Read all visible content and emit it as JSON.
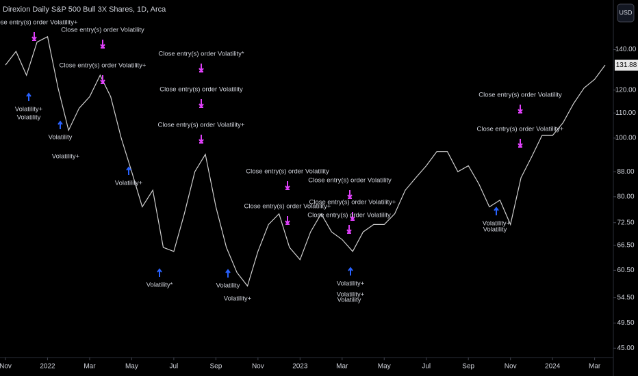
{
  "chart_data": {
    "type": "line",
    "title": "Direxion Daily S&P 500 Bull 3X Shares, 1D, Arca",
    "currency": "USD",
    "categories": [
      "Nov",
      null,
      null,
      null,
      "2022",
      null,
      null,
      null,
      "Mar",
      null,
      null,
      null,
      "May",
      null,
      null,
      null,
      "Jul",
      null,
      null,
      null,
      "Sep",
      null,
      null,
      null,
      "Nov",
      null,
      null,
      null,
      "2023",
      null,
      null,
      null,
      "Mar",
      null,
      null,
      null,
      "May",
      null,
      null,
      null,
      "Jul",
      null,
      null,
      null,
      "Sep",
      null,
      null,
      null,
      "Nov",
      null,
      null,
      null,
      "2024",
      null,
      null,
      null,
      "Mar",
      null
    ],
    "values": [
      132,
      139,
      127,
      144,
      147,
      121,
      103,
      112,
      117,
      127,
      117,
      100,
      88,
      77,
      82,
      66,
      65,
      75,
      88,
      94,
      77,
      66,
      60,
      57,
      65,
      72,
      75,
      66,
      63,
      70,
      75,
      70,
      68,
      65,
      70,
      72,
      72,
      75,
      82,
      86,
      90,
      95,
      95,
      88,
      90,
      84,
      77,
      79,
      72,
      86,
      93,
      101,
      101,
      106,
      114,
      121,
      125,
      132
    ],
    "color": "#d0d0d0",
    "log_scale": true,
    "ylim": [
      43.2,
      169
    ],
    "yticks": [
      {
        "value": 45,
        "label": "45.00"
      },
      {
        "value": 49.5,
        "label": "49.50"
      },
      {
        "value": 54.5,
        "label": "54.50"
      },
      {
        "value": 60.5,
        "label": "60.50"
      },
      {
        "value": 66.5,
        "label": "66.50"
      },
      {
        "value": 72.5,
        "label": "72.50"
      },
      {
        "value": 80,
        "label": "80.00"
      },
      {
        "value": 88,
        "label": "88.00"
      },
      {
        "value": 100,
        "label": "100.00"
      },
      {
        "value": 110,
        "label": "110.00"
      },
      {
        "value": 120,
        "label": "120.00"
      },
      {
        "value": 140,
        "label": "140.00"
      }
    ],
    "last_price": {
      "value": 131.88,
      "label": "131.88"
    },
    "annotations": [
      "Close entry(s) order Volatility+",
      "Close entry(s) order Volatility",
      "Close entry(s) order Volatility+",
      "Close entry(s) order Volatility*",
      "Close entry(s) order Volatility",
      "Close entry(s) order Volatility+",
      "Close entry(s) order Volatility",
      "Close entry(s) order Volatility+",
      "Close entry(s) order Volatility",
      "Close entry(s) order Volatility+",
      "Close entry(s) order Volatility",
      "Close entry(s) order Volatility",
      "Close entry(s) order Volatility+",
      "Volatility+",
      "Volatility",
      "Volatility",
      "Volatility+",
      "Volatility+",
      "Volatility*",
      "Volatility",
      "Volatility+",
      "Volatility+",
      "Volatility+",
      "Volatility",
      "Volatility+",
      "Volatility"
    ]
  }
}
